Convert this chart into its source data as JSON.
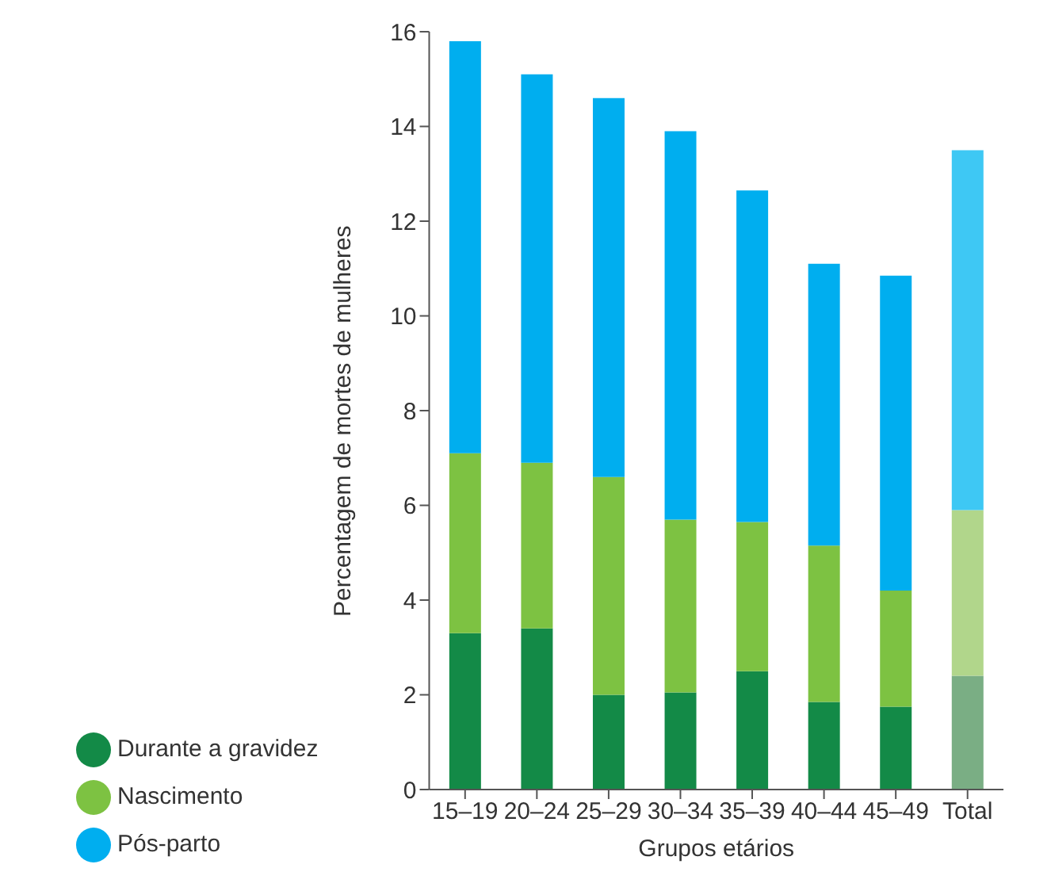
{
  "chart_data": {
    "type": "bar",
    "stacked": true,
    "xlabel": "Grupos etários",
    "ylabel": "Percentagem de mortes de mulheres",
    "categories": [
      "15–19",
      "20–24",
      "25–29",
      "30–34",
      "35–39",
      "40–44",
      "45–49",
      "Total"
    ],
    "series": [
      {
        "name": "Durante a gravidez",
        "color": "#138a47",
        "colors": [
          "#138a47",
          "#138a47",
          "#138a47",
          "#138a47",
          "#138a47",
          "#138a47",
          "#138a47",
          "#7aae84"
        ],
        "values": [
          3.3,
          3.4,
          2.0,
          2.05,
          2.5,
          1.85,
          1.75,
          2.4
        ]
      },
      {
        "name": "Nascimento",
        "color": "#7dc242",
        "colors": [
          "#7dc242",
          "#7dc242",
          "#7dc242",
          "#7dc242",
          "#7dc242",
          "#7dc242",
          "#7dc242",
          "#b1d68b"
        ],
        "values": [
          3.8,
          3.5,
          4.6,
          3.65,
          3.15,
          3.3,
          2.45,
          3.5
        ]
      },
      {
        "name": "Pós-parto",
        "color": "#00aeef",
        "colors": [
          "#00aeef",
          "#00aeef",
          "#00aeef",
          "#00aeef",
          "#00aeef",
          "#00aeef",
          "#00aeef",
          "#3ec8f4"
        ],
        "values": [
          8.7,
          8.2,
          8.0,
          8.2,
          7.0,
          5.95,
          6.65,
          7.6
        ]
      }
    ],
    "ylim": [
      0,
      16
    ],
    "yticks": [
      0,
      2,
      4,
      6,
      8,
      10,
      12,
      14,
      16
    ],
    "grid": false,
    "legend": "bottom"
  }
}
